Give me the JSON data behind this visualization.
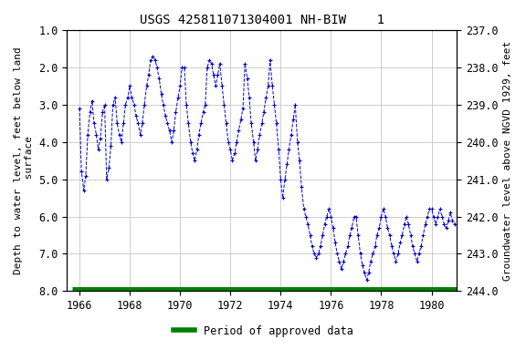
{
  "title": "USGS 425811071304001 NH-BIW    1",
  "ylabel_left": "Depth to water level, feet below land\n surface",
  "ylabel_right": "Groundwater level above NGVD 1929, feet",
  "ylim_left": [
    1.0,
    8.0
  ],
  "ylim_right": [
    244.0,
    237.0
  ],
  "xlim": [
    1965.5,
    1981.0
  ],
  "xticks": [
    1966,
    1968,
    1970,
    1972,
    1974,
    1976,
    1978,
    1980
  ],
  "yticks_left": [
    1.0,
    2.0,
    3.0,
    4.0,
    5.0,
    6.0,
    7.0,
    8.0
  ],
  "yticks_right": [
    244.0,
    243.0,
    242.0,
    241.0,
    240.0,
    239.0,
    238.0,
    237.0
  ],
  "line_color": "#0000CC",
  "marker": "+",
  "linestyle": "--",
  "legend_label": "Period of approved data",
  "legend_color": "#008000",
  "background_color": "#ffffff",
  "grid_color": "#bbbbbb",
  "title_fontsize": 10,
  "label_fontsize": 8,
  "tick_fontsize": 8.5,
  "data_x": [
    1966.0,
    1966.08,
    1966.17,
    1966.25,
    1966.33,
    1966.42,
    1966.5,
    1966.58,
    1966.67,
    1966.75,
    1966.83,
    1966.92,
    1967.0,
    1967.08,
    1967.17,
    1967.25,
    1967.33,
    1967.42,
    1967.5,
    1967.58,
    1967.67,
    1967.75,
    1967.83,
    1967.92,
    1968.0,
    1968.08,
    1968.17,
    1968.25,
    1968.33,
    1968.42,
    1968.5,
    1968.58,
    1968.67,
    1968.75,
    1968.83,
    1968.92,
    1969.0,
    1969.08,
    1969.17,
    1969.25,
    1969.33,
    1969.42,
    1969.5,
    1969.58,
    1969.67,
    1969.75,
    1969.83,
    1969.92,
    1970.0,
    1970.08,
    1970.17,
    1970.25,
    1970.33,
    1970.42,
    1970.5,
    1970.58,
    1970.67,
    1970.75,
    1970.83,
    1970.92,
    1971.0,
    1971.08,
    1971.17,
    1971.25,
    1971.33,
    1971.42,
    1971.5,
    1971.58,
    1971.67,
    1971.75,
    1971.83,
    1971.92,
    1972.0,
    1972.08,
    1972.17,
    1972.25,
    1972.33,
    1972.42,
    1972.5,
    1972.58,
    1972.67,
    1972.75,
    1972.83,
    1972.92,
    1973.0,
    1973.08,
    1973.17,
    1973.25,
    1973.33,
    1973.42,
    1973.5,
    1973.58,
    1973.67,
    1973.75,
    1973.83,
    1973.92,
    1974.0,
    1974.08,
    1974.17,
    1974.25,
    1974.33,
    1974.42,
    1974.5,
    1974.58,
    1974.67,
    1974.75,
    1974.83,
    1974.92,
    1975.0,
    1975.08,
    1975.17,
    1975.25,
    1975.33,
    1975.42,
    1975.5,
    1975.58,
    1975.67,
    1975.75,
    1975.83,
    1975.92,
    1976.0,
    1976.08,
    1976.17,
    1976.25,
    1976.33,
    1976.42,
    1976.5,
    1976.58,
    1976.67,
    1976.75,
    1976.83,
    1976.92,
    1977.0,
    1977.08,
    1977.17,
    1977.25,
    1977.33,
    1977.42,
    1977.5,
    1977.58,
    1977.67,
    1977.75,
    1977.83,
    1977.92,
    1978.0,
    1978.08,
    1978.17,
    1978.25,
    1978.33,
    1978.42,
    1978.5,
    1978.58,
    1978.67,
    1978.75,
    1978.83,
    1978.92,
    1979.0,
    1979.08,
    1979.17,
    1979.25,
    1979.33,
    1979.42,
    1979.5,
    1979.58,
    1979.67,
    1979.75,
    1979.83,
    1979.92,
    1980.0,
    1980.08,
    1980.17,
    1980.25,
    1980.33,
    1980.42,
    1980.5,
    1980.58,
    1980.67,
    1980.75,
    1980.83,
    1980.92
  ],
  "data_y": [
    3.1,
    4.8,
    5.3,
    4.9,
    3.8,
    3.2,
    2.9,
    3.5,
    3.8,
    4.2,
    3.9,
    3.2,
    3.0,
    5.0,
    4.7,
    4.1,
    3.0,
    2.8,
    3.5,
    3.8,
    4.0,
    3.5,
    3.0,
    2.8,
    2.5,
    2.8,
    3.0,
    3.3,
    3.5,
    3.8,
    3.5,
    3.0,
    2.5,
    2.2,
    1.8,
    1.7,
    1.8,
    2.0,
    2.3,
    2.7,
    3.0,
    3.3,
    3.5,
    3.7,
    4.0,
    3.7,
    3.2,
    2.8,
    2.5,
    2.0,
    2.0,
    3.0,
    3.5,
    4.0,
    4.3,
    4.5,
    4.2,
    3.8,
    3.5,
    3.2,
    3.0,
    2.0,
    1.8,
    1.9,
    2.2,
    2.5,
    2.2,
    1.9,
    2.5,
    3.0,
    3.5,
    4.0,
    4.2,
    4.5,
    4.3,
    4.0,
    3.7,
    3.4,
    3.1,
    1.9,
    2.3,
    2.8,
    3.5,
    4.0,
    4.5,
    4.2,
    3.8,
    3.5,
    3.2,
    2.8,
    2.5,
    1.8,
    2.5,
    3.0,
    3.5,
    4.2,
    5.0,
    5.5,
    5.0,
    4.6,
    4.2,
    3.8,
    3.4,
    3.0,
    4.0,
    4.5,
    5.2,
    5.8,
    6.0,
    6.2,
    6.5,
    6.8,
    7.0,
    7.1,
    7.0,
    6.8,
    6.5,
    6.2,
    6.0,
    5.8,
    6.0,
    6.3,
    6.7,
    7.0,
    7.2,
    7.4,
    7.2,
    7.0,
    6.8,
    6.5,
    6.3,
    6.0,
    6.0,
    6.5,
    7.0,
    7.3,
    7.5,
    7.7,
    7.5,
    7.2,
    7.0,
    6.8,
    6.5,
    6.3,
    6.0,
    5.8,
    6.0,
    6.3,
    6.5,
    6.8,
    7.0,
    7.2,
    7.0,
    6.7,
    6.5,
    6.2,
    6.0,
    6.2,
    6.5,
    6.8,
    7.0,
    7.2,
    7.0,
    6.8,
    6.5,
    6.2,
    6.0,
    5.8,
    5.8,
    6.0,
    6.2,
    6.0,
    5.8,
    6.0,
    6.2,
    6.3,
    6.1,
    5.9,
    6.1,
    6.2
  ],
  "approved_x_start": 1965.7,
  "approved_x_end": 1981.0,
  "approved_y": 7.96
}
